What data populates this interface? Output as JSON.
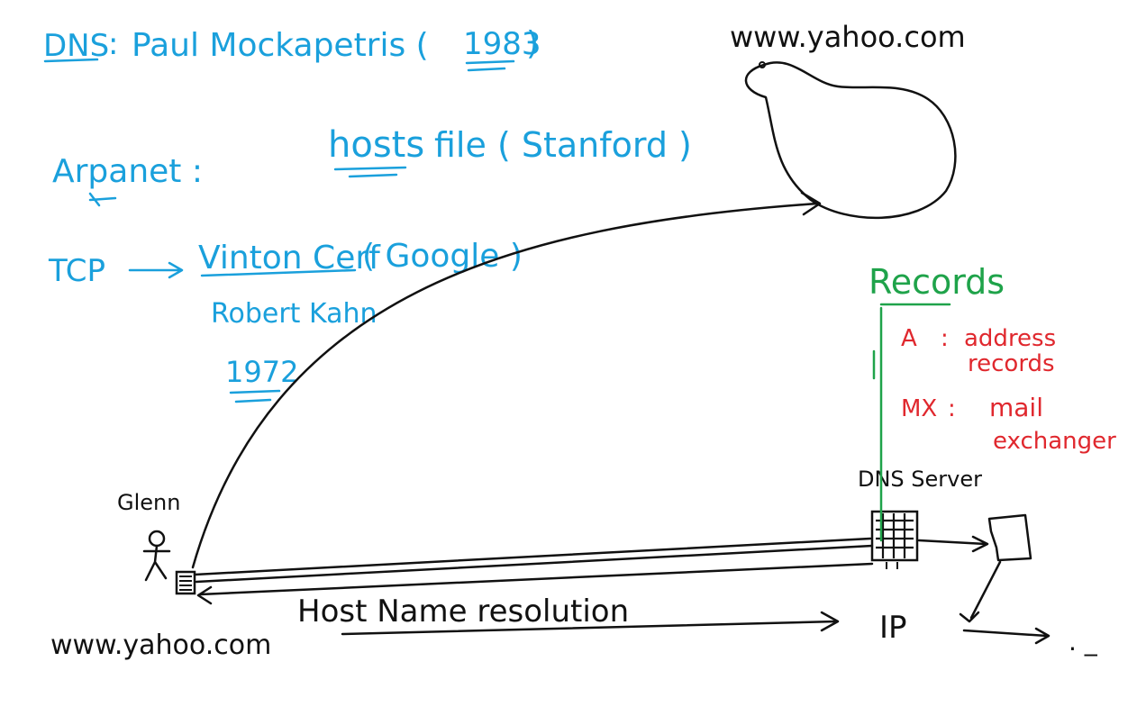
{
  "notes": {
    "dns_label": "DNS",
    "dns_colon": ":",
    "dns_inventor": "Paul Mockapetris (",
    "dns_year": "1983",
    "dns_close": ")",
    "arpanet": "Arpanet :",
    "hosts_file": "hosts",
    "hosts_file_rest": "file ( Stanford )",
    "tcp": "TCP",
    "tcp_inventor1": "Vinton Cerf",
    "tcp_inventor1_rest": "( Google )",
    "tcp_inventor2": "Robert Kahn",
    "tcp_year": "1972"
  },
  "diagram": {
    "top_domain": "www.yahoo.com",
    "person_name": "Glenn",
    "bottom_domain": "www.yahoo.com",
    "arrow_caption": "Host Name resolution",
    "ip_label": "IP",
    "dns_server_label": "DNS Server",
    "trailing_dots": ". _"
  },
  "records": {
    "title": "Records",
    "items": [
      {
        "type": "A",
        "sep": ":",
        "desc_line1": "address",
        "desc_line2": "records"
      },
      {
        "type": "MX",
        "sep": ":",
        "desc_line1": "mail",
        "desc_line2": "exchanger"
      }
    ]
  },
  "colors": {
    "blue_ink": "#1aa0dc",
    "black_ink": "#111111",
    "green_ink": "#1fa34a",
    "red_ink": "#e0282e"
  }
}
